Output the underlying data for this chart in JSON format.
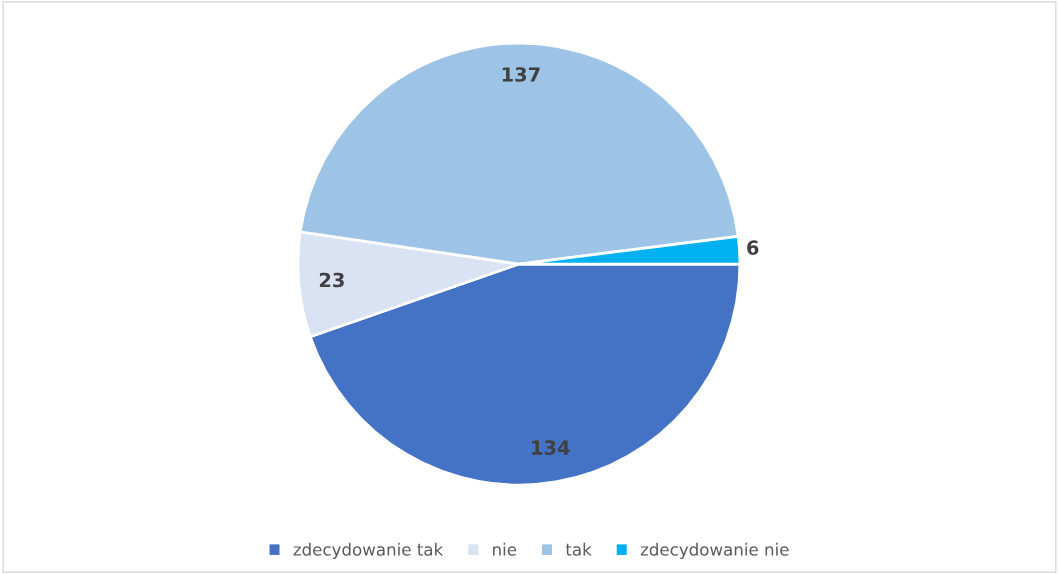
{
  "chart_data": {
    "type": "pie",
    "categories": [
      "zdecydowanie tak",
      "nie",
      "tak",
      "zdecydowanie nie"
    ],
    "values": [
      134,
      23,
      137,
      6
    ],
    "colors": [
      "#4472c4",
      "#dae3f3",
      "#9dc3e6",
      "#00b0f0"
    ],
    "data_labels": true,
    "legend": "bottom"
  }
}
